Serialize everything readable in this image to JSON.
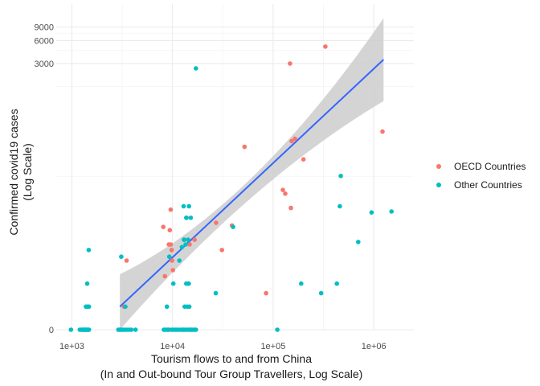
{
  "chart_data": {
    "type": "scatter",
    "title": "",
    "xlabel_line1": "Tourism flows to and from China",
    "xlabel_line2": "(In and Out-bound Tour Group Travellers, Log Scale)",
    "ylabel_line1": "Confirmed covid19 cases",
    "ylabel_line2": "(Log Scale)",
    "x_scale": "log10",
    "y_scale": "log10(y+1)",
    "xlim": [
      700,
      2500000
    ],
    "ylim": [
      0,
      18000
    ],
    "x_ticks": [
      {
        "value": 1000,
        "label": "1e+03"
      },
      {
        "value": 10000,
        "label": "1e+04"
      },
      {
        "value": 100000,
        "label": "1e+05"
      },
      {
        "value": 1000000,
        "label": "1e+06"
      }
    ],
    "y_ticks": [
      {
        "value": 0,
        "label": "0"
      },
      {
        "value": 3000,
        "label": "3000"
      },
      {
        "value": 6000,
        "label": "6000"
      },
      {
        "value": 9000,
        "label": "9000"
      }
    ],
    "grid": true,
    "legend_position": "right",
    "series": [
      {
        "name": "OECD Countries",
        "color": "#F8766D",
        "points": [
          {
            "x": 3300,
            "y": 1
          },
          {
            "x": 3500,
            "y": 7
          },
          {
            "x": 8100,
            "y": 21
          },
          {
            "x": 8400,
            "y": 4
          },
          {
            "x": 9200,
            "y": 0
          },
          {
            "x": 9200,
            "y": 12
          },
          {
            "x": 9400,
            "y": 19
          },
          {
            "x": 9600,
            "y": 36
          },
          {
            "x": 9600,
            "y": 12
          },
          {
            "x": 9800,
            "y": 10
          },
          {
            "x": 9900,
            "y": 7
          },
          {
            "x": 10100,
            "y": 5
          },
          {
            "x": 12800,
            "y": 0
          },
          {
            "x": 13100,
            "y": 14
          },
          {
            "x": 13800,
            "y": 28
          },
          {
            "x": 14300,
            "y": 3
          },
          {
            "x": 14800,
            "y": 12
          },
          {
            "x": 15200,
            "y": 0
          },
          {
            "x": 16100,
            "y": 0
          },
          {
            "x": 16600,
            "y": 14
          },
          {
            "x": 27100,
            "y": 24
          },
          {
            "x": 31000,
            "y": 10
          },
          {
            "x": 39000,
            "y": 22
          },
          {
            "x": 52000,
            "y": 244
          },
          {
            "x": 85000,
            "y": 2
          },
          {
            "x": 125000,
            "y": 66
          },
          {
            "x": 132000,
            "y": 59
          },
          {
            "x": 147000,
            "y": 3000
          },
          {
            "x": 150000,
            "y": 38
          },
          {
            "x": 153000,
            "y": 291
          },
          {
            "x": 165000,
            "y": 312
          },
          {
            "x": 200000,
            "y": 167
          },
          {
            "x": 330000,
            "y": 5000
          },
          {
            "x": 1220000,
            "y": 387
          }
        ]
      },
      {
        "name": "Other Countries",
        "color": "#00BFC4",
        "points": [
          {
            "x": 980,
            "y": 0
          },
          {
            "x": 1200,
            "y": 0
          },
          {
            "x": 1250,
            "y": 0
          },
          {
            "x": 1280,
            "y": 0
          },
          {
            "x": 1300,
            "y": 0
          },
          {
            "x": 1320,
            "y": 0
          },
          {
            "x": 1350,
            "y": 0
          },
          {
            "x": 1380,
            "y": 0
          },
          {
            "x": 1400,
            "y": 0
          },
          {
            "x": 1420,
            "y": 0
          },
          {
            "x": 1450,
            "y": 0
          },
          {
            "x": 1480,
            "y": 0
          },
          {
            "x": 1380,
            "y": 1
          },
          {
            "x": 1430,
            "y": 1
          },
          {
            "x": 1480,
            "y": 1
          },
          {
            "x": 1420,
            "y": 3
          },
          {
            "x": 1470,
            "y": 10
          },
          {
            "x": 2900,
            "y": 0
          },
          {
            "x": 3000,
            "y": 0
          },
          {
            "x": 3100,
            "y": 0
          },
          {
            "x": 3200,
            "y": 0
          },
          {
            "x": 3300,
            "y": 0
          },
          {
            "x": 3500,
            "y": 0
          },
          {
            "x": 3700,
            "y": 0
          },
          {
            "x": 3900,
            "y": 0
          },
          {
            "x": 4300,
            "y": 0
          },
          {
            "x": 3100,
            "y": 8
          },
          {
            "x": 3400,
            "y": 1
          },
          {
            "x": 8200,
            "y": 0
          },
          {
            "x": 8500,
            "y": 0
          },
          {
            "x": 8900,
            "y": 0
          },
          {
            "x": 9100,
            "y": 0
          },
          {
            "x": 9800,
            "y": 0
          },
          {
            "x": 10300,
            "y": 0
          },
          {
            "x": 10800,
            "y": 0
          },
          {
            "x": 11300,
            "y": 0
          },
          {
            "x": 12000,
            "y": 0
          },
          {
            "x": 12600,
            "y": 0
          },
          {
            "x": 13200,
            "y": 0
          },
          {
            "x": 13800,
            "y": 0
          },
          {
            "x": 14400,
            "y": 0
          },
          {
            "x": 15000,
            "y": 0
          },
          {
            "x": 15600,
            "y": 0
          },
          {
            "x": 16500,
            "y": 0
          },
          {
            "x": 17100,
            "y": 0
          },
          {
            "x": 8800,
            "y": 1
          },
          {
            "x": 13200,
            "y": 1
          },
          {
            "x": 14000,
            "y": 1
          },
          {
            "x": 14700,
            "y": 1
          },
          {
            "x": 10200,
            "y": 3
          },
          {
            "x": 13700,
            "y": 3
          },
          {
            "x": 14500,
            "y": 3
          },
          {
            "x": 9300,
            "y": 8
          },
          {
            "x": 11700,
            "y": 7
          },
          {
            "x": 12400,
            "y": 11
          },
          {
            "x": 13000,
            "y": 14
          },
          {
            "x": 13500,
            "y": 12
          },
          {
            "x": 14300,
            "y": 14
          },
          {
            "x": 12900,
            "y": 40
          },
          {
            "x": 13700,
            "y": 28
          },
          {
            "x": 14600,
            "y": 40
          },
          {
            "x": 15200,
            "y": 28
          },
          {
            "x": 17100,
            "y": 2600
          },
          {
            "x": 26900,
            "y": 2
          },
          {
            "x": 40000,
            "y": 21
          },
          {
            "x": 110000,
            "y": 0
          },
          {
            "x": 190000,
            "y": 3
          },
          {
            "x": 300000,
            "y": 2
          },
          {
            "x": 430000,
            "y": 3
          },
          {
            "x": 460000,
            "y": 40
          },
          {
            "x": 470000,
            "y": 101
          },
          {
            "x": 700000,
            "y": 13
          },
          {
            "x": 950000,
            "y": 33
          },
          {
            "x": 1500000,
            "y": 34
          }
        ]
      }
    ],
    "trend": {
      "method": "lm",
      "color": "#3366FF",
      "band_color": "#CCCCCC",
      "x_range": [
        3000,
        1250000
      ],
      "fit_start": 1.0,
      "fit_end": 3380,
      "band_start": [
        0,
        4.3
      ],
      "band_mid_x": 30000,
      "band_mid": [
        22,
        40
      ],
      "band_end": [
        970,
        11750
      ]
    }
  }
}
